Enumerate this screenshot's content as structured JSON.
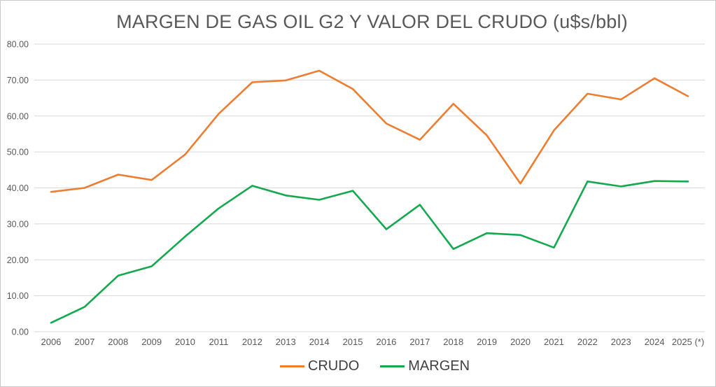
{
  "colors": {
    "crudo": "#ED7D31",
    "margen": "#15A94F",
    "gridline": "#D9D9D9",
    "axis_text": "#595959",
    "legend_text": "#404040",
    "frame_border": "#C9C9C9"
  },
  "chart_data": {
    "type": "line",
    "title": "MARGEN DE GAS OIL G2 Y VALOR DEL CRUDO (u$s/bbl)",
    "xlabel": "",
    "ylabel": "",
    "ylim": [
      0,
      80
    ],
    "grid": true,
    "legend_position": "bottom",
    "y_ticks": [
      "0.00",
      "10.00",
      "20.00",
      "30.00",
      "40.00",
      "50.00",
      "60.00",
      "70.00",
      "80.00"
    ],
    "categories": [
      "2006",
      "2007",
      "2008",
      "2009",
      "2010",
      "2011",
      "2012",
      "2013",
      "2014",
      "2015",
      "2016",
      "2017",
      "2018",
      "2019",
      "2020",
      "2021",
      "2022",
      "2023",
      "2024",
      "2025 (*)"
    ],
    "series": [
      {
        "name": "CRUDO",
        "color": "#ED7D31",
        "values": [
          38.9,
          40.0,
          43.7,
          42.2,
          49.3,
          60.6,
          69.4,
          69.9,
          72.6,
          67.5,
          57.9,
          53.4,
          63.4,
          54.6,
          41.2,
          56.0,
          66.2,
          64.6,
          70.5,
          65.5
        ]
      },
      {
        "name": "MARGEN",
        "color": "#15A94F",
        "values": [
          2.5,
          6.9,
          15.6,
          18.2,
          26.5,
          34.3,
          40.6,
          37.9,
          36.7,
          39.2,
          28.5,
          35.3,
          23.0,
          27.4,
          26.9,
          23.4,
          41.8,
          40.4,
          41.9,
          41.8
        ]
      }
    ]
  }
}
